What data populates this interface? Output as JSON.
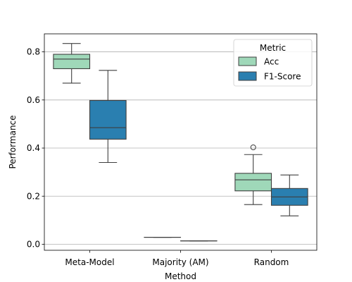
{
  "chart_data": {
    "type": "box",
    "xlabel": "Method",
    "ylabel": "Performance",
    "ylim": [
      -0.025,
      0.875
    ],
    "yticks": [
      0.0,
      0.2,
      0.4,
      0.6,
      0.8
    ],
    "ytick_labels": [
      "0.0",
      "0.2",
      "0.4",
      "0.6",
      "0.8"
    ],
    "grid": "y",
    "categories": [
      "Meta-Model",
      "Majority (AM)",
      "Random"
    ],
    "legend": {
      "title": "Metric",
      "placement": "upper right"
    },
    "series": [
      {
        "name": "Acc",
        "color": "#9fd8b9",
        "boxes": [
          {
            "whisker_low": 0.67,
            "q1": 0.73,
            "median": 0.77,
            "q3": 0.79,
            "whisker_high": 0.835,
            "outliers": []
          },
          {
            "whisker_low": 0.029,
            "q1": 0.029,
            "median": 0.029,
            "q3": 0.029,
            "whisker_high": 0.029,
            "outliers": []
          },
          {
            "whisker_low": 0.165,
            "q1": 0.222,
            "median": 0.268,
            "q3": 0.295,
            "whisker_high": 0.373,
            "outliers": [
              0.403
            ]
          }
        ]
      },
      {
        "name": "F1-Score",
        "color": "#2a7fb0",
        "boxes": [
          {
            "whisker_low": 0.34,
            "q1": 0.437,
            "median": 0.485,
            "q3": 0.598,
            "whisker_high": 0.723,
            "outliers": []
          },
          {
            "whisker_low": 0.014,
            "q1": 0.014,
            "median": 0.014,
            "q3": 0.014,
            "whisker_high": 0.014,
            "outliers": []
          },
          {
            "whisker_low": 0.118,
            "q1": 0.162,
            "median": 0.197,
            "q3": 0.232,
            "whisker_high": 0.288,
            "outliers": []
          }
        ]
      }
    ]
  }
}
